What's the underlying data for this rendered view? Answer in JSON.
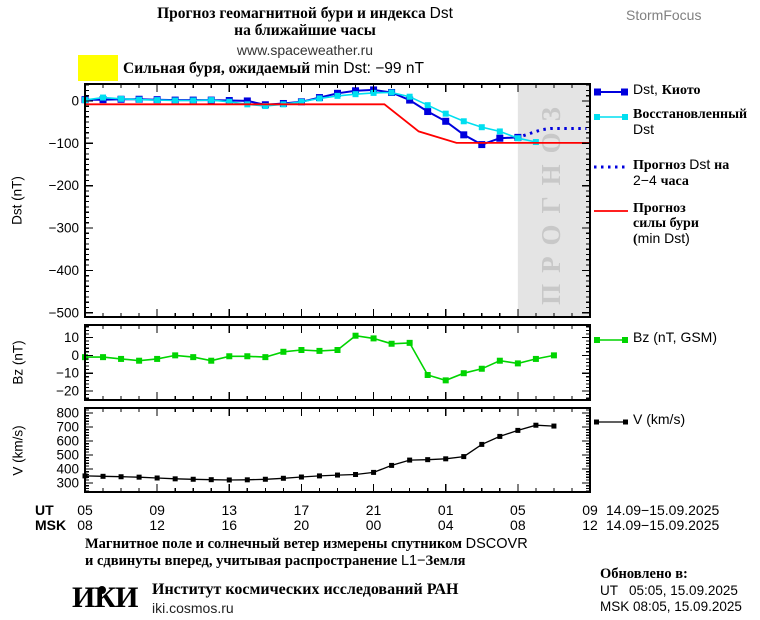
{
  "header": {
    "title_line1": "Прогноз геомагнитной бури и индекса Dst",
    "title_line2": "на ближайшие часы",
    "site": "www.spaceweather.ru",
    "brand": "StormFocus"
  },
  "alert": {
    "level_color": "#ffff00",
    "text": "Сильная буря, ожидаемый min Dst: −99 nT"
  },
  "chart_data": [
    {
      "type": "line",
      "panel": "dst",
      "ylabel": "Dst (nT)",
      "xlim": [
        0,
        28
      ],
      "ylim": [
        -510,
        40
      ],
      "x_unit": "hours since 14.09.2025 05:00 UT",
      "yticks": [
        {
          "v": 0,
          "label": "0"
        },
        {
          "v": -100,
          "label": "−100"
        },
        {
          "v": -200,
          "label": "−200"
        },
        {
          "v": -300,
          "label": "−300"
        },
        {
          "v": -400,
          "label": "−400"
        },
        {
          "v": -500,
          "label": "−500"
        }
      ],
      "yminor_step": 12.5,
      "xmajor_step": 4,
      "xminor_step": 1,
      "forecast_zone": {
        "from": 24,
        "to": 28,
        "label": "ПРОГНОЗ",
        "fill": "#e4e4e4",
        "label_color": "#c8c8c8"
      },
      "series": [
        {
          "name": "Dst, Киото",
          "color": "#0000dd",
          "width": 2,
          "marker": 7,
          "x0": 0,
          "dx": 1,
          "values": [
            3,
            3,
            4,
            4,
            3,
            2,
            2,
            2,
            1,
            0,
            -9,
            -6,
            -2,
            8,
            18,
            24,
            26,
            20,
            2,
            -25,
            -48,
            -80,
            -103,
            -88,
            -86
          ]
        },
        {
          "name": "Восстановленный Dst",
          "color": "#00dff0",
          "width": 1.6,
          "marker": 6,
          "x0": 0,
          "dx": 1,
          "values": [
            2,
            8,
            5,
            3,
            2,
            1,
            1,
            2,
            -2,
            -8,
            -12,
            -8,
            -2,
            6,
            12,
            16,
            19,
            20,
            10,
            -10,
            -30,
            -48,
            -62,
            -72,
            -88,
            -97
          ]
        },
        {
          "name": "Прогноз Dst на 2−4 часа",
          "color": "#0000dd",
          "width": 3,
          "dash": "2.5 4.5",
          "x": [
            24.3,
            24.8,
            25.3,
            25.8,
            27.8
          ],
          "y": [
            -82,
            -75,
            -68,
            -65,
            -65
          ]
        },
        {
          "name": "Прогноз силы бури (min Dst)",
          "color": "#ff0000",
          "width": 1.8,
          "x": [
            0,
            16.6,
            18.5,
            20.6,
            28
          ],
          "y": [
            -8,
            -8,
            -72,
            -99,
            -99
          ]
        }
      ]
    },
    {
      "type": "line",
      "panel": "bz",
      "ylabel": "Bz (nT)",
      "xlim": [
        0,
        28
      ],
      "ylim": [
        -25,
        17
      ],
      "yticks": [
        {
          "v": 10,
          "label": "10"
        },
        {
          "v": 0,
          "label": "0"
        },
        {
          "v": -10,
          "label": "−10"
        },
        {
          "v": -20,
          "label": "−20"
        }
      ],
      "yminor_step": 2,
      "xmajor_step": 4,
      "xminor_step": 1,
      "series": [
        {
          "name": "Bz (nT, GSM)",
          "color": "#00d400",
          "width": 1.6,
          "marker": 6,
          "x0": 0,
          "dx": 1,
          "values": [
            -1,
            -1,
            -2,
            -3,
            -2,
            0,
            -1,
            -3,
            -0.5,
            -0.5,
            -1,
            2,
            3,
            2.5,
            3,
            11,
            9.5,
            6.5,
            7,
            -11,
            -14,
            -10,
            -7.5,
            -3,
            -4.5,
            -2,
            0
          ]
        }
      ]
    },
    {
      "type": "line",
      "panel": "v",
      "ylabel": "V (km/s)",
      "xlim": [
        0,
        28
      ],
      "ylim": [
        235,
        835
      ],
      "yticks": [
        {
          "v": 800,
          "label": "800"
        },
        {
          "v": 700,
          "label": "700"
        },
        {
          "v": 600,
          "label": "600"
        },
        {
          "v": 500,
          "label": "500"
        },
        {
          "v": 400,
          "label": "400"
        },
        {
          "v": 300,
          "label": "300"
        }
      ],
      "yminor_step": 20,
      "xmajor_step": 4,
      "xminor_step": 1,
      "series": [
        {
          "name": "V (km/s)",
          "color": "#000000",
          "width": 1.3,
          "marker": 5,
          "x0": 0,
          "dx": 1,
          "values": [
            350,
            347,
            344,
            341,
            335,
            329,
            326,
            323,
            321,
            322,
            326,
            333,
            342,
            350,
            356,
            360,
            375,
            425,
            463,
            466,
            472,
            488,
            575,
            632,
            675,
            712,
            706
          ]
        }
      ]
    }
  ],
  "xaxis": {
    "ut_label": "UT",
    "msk_label": "MSK",
    "tick_hours": [
      0,
      4,
      8,
      12,
      16,
      20,
      24,
      28
    ],
    "ut": [
      "05",
      "09",
      "13",
      "17",
      "21",
      "01",
      "05",
      "09"
    ],
    "msk": [
      "08",
      "12",
      "16",
      "20",
      "00",
      "04",
      "08",
      "12"
    ],
    "date_range": "14.09−15.09.2025"
  },
  "footnote": {
    "line1": "Магнитное поле и солнечный ветер измерены спутником DSCOVR",
    "line2": "и сдвинуты вперед, учитывая распространение L1−Земля"
  },
  "institute": {
    "logo": "ИКИ",
    "name": "Институт космических исследований РАН",
    "site": "iki.cosmos.ru"
  },
  "updated": {
    "label": "Обновлено в:",
    "ut": "UT   05:05, 15.09.2025",
    "msk": "MSK 08:05, 15.09.2025"
  }
}
